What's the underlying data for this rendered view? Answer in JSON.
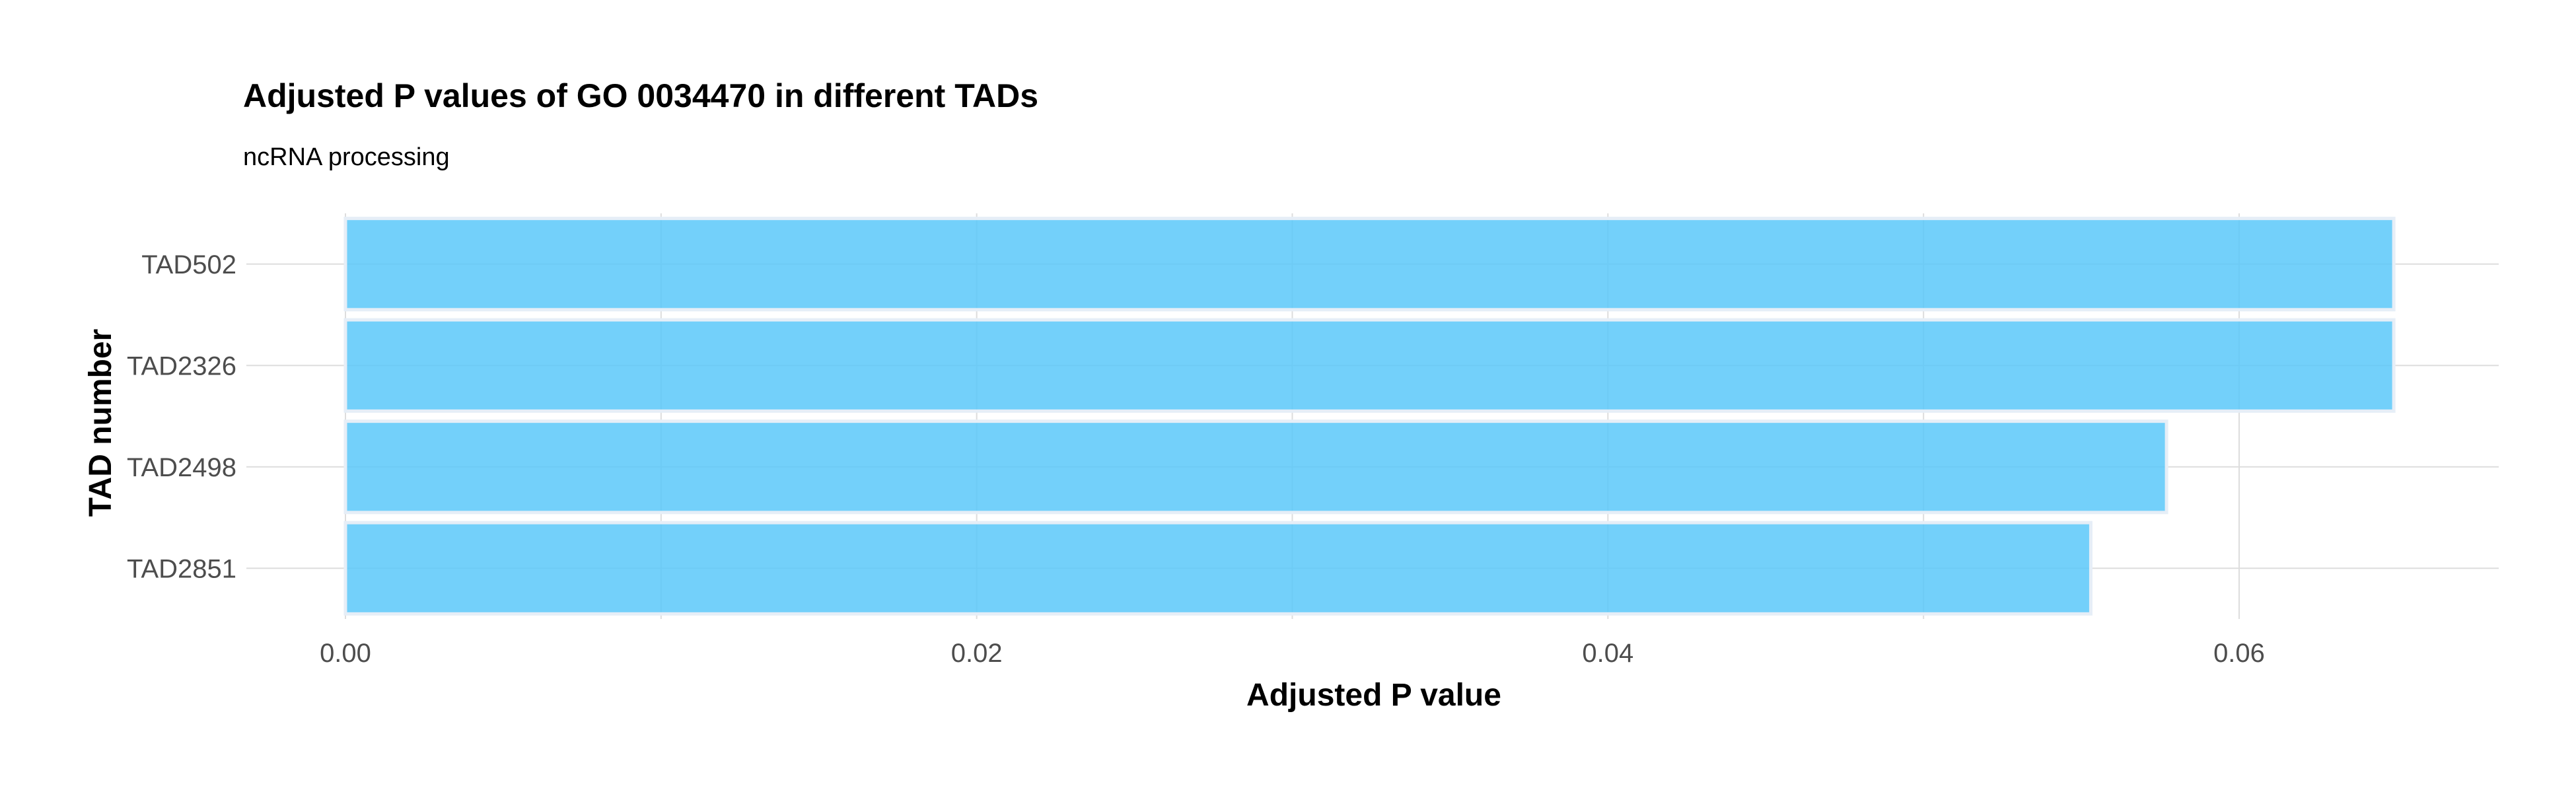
{
  "chart_data": {
    "type": "bar",
    "orientation": "horizontal",
    "title": "Adjusted P values of GO 0034470 in different TADs",
    "subtitle": "ncRNA processing",
    "xlabel": "Adjusted P value",
    "ylabel": "TAD number",
    "categories": [
      "TAD502",
      "TAD2326",
      "TAD2498",
      "TAD2851"
    ],
    "values": [
      0.0649,
      0.0649,
      0.0577,
      0.0553
    ],
    "xlim": [
      0,
      0.068
    ],
    "xticks": [
      0.0,
      0.02,
      0.04,
      0.06
    ],
    "xtick_labels": [
      "0.00",
      "0.02",
      "0.04",
      "0.06"
    ],
    "grid": true,
    "legend": "none",
    "bar_color": "#5BC8F9",
    "bar_outline_color": "#E6EEF7",
    "grid_color": "#DDDDDD"
  }
}
